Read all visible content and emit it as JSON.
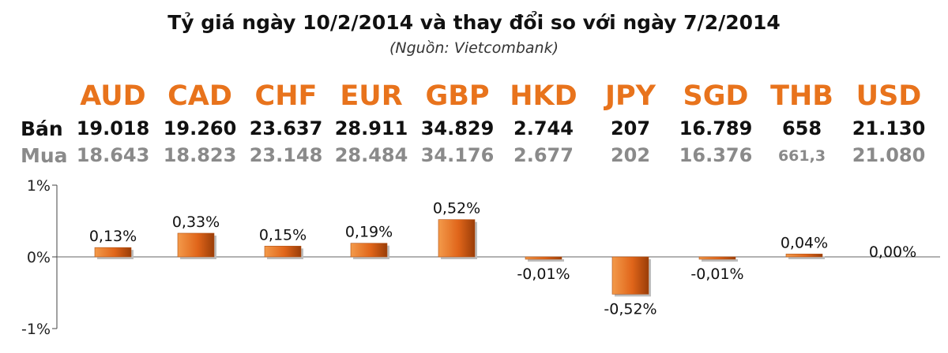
{
  "title": "Tỷ giá ngày 10/2/2014 và thay đổi so với ngày 7/2/2014",
  "source": "(Nguồn: Vietcombank)",
  "labels": {
    "sell": "Bán",
    "buy": "Mua"
  },
  "colors": {
    "accent": "#e8731c",
    "bar": "#e0651a",
    "buy_text": "#8a8a8a"
  },
  "currencies": [
    "AUD",
    "CAD",
    "CHF",
    "EUR",
    "GBP",
    "HKD",
    "JPY",
    "SGD",
    "THB",
    "USD"
  ],
  "sell": [
    "19.018",
    "19.260",
    "23.637",
    "28.911",
    "34.829",
    "2.744",
    "207",
    "16.789",
    "658",
    "21.130"
  ],
  "buy": [
    "18.643",
    "18.823",
    "23.148",
    "28.484",
    "34.176",
    "2.677",
    "202",
    "16.376",
    "661,3",
    "21.080"
  ],
  "chart_data": {
    "type": "bar",
    "categories": [
      "AUD",
      "CAD",
      "CHF",
      "EUR",
      "GBP",
      "HKD",
      "JPY",
      "SGD",
      "THB",
      "USD"
    ],
    "values": [
      0.13,
      0.33,
      0.15,
      0.19,
      0.52,
      -0.01,
      -0.52,
      -0.01,
      0.04,
      0.0
    ],
    "data_labels": [
      "0,13%",
      "0,33%",
      "0,15%",
      "0,19%",
      "0,52%",
      "-0,01%",
      "-0,52%",
      "-0,01%",
      "0,04%",
      "0,00%"
    ],
    "yticks": [
      "1%",
      "0%",
      "-1%"
    ],
    "ytick_values": [
      1,
      0,
      -1
    ],
    "ylim": [
      -1,
      1
    ],
    "grid": false
  }
}
